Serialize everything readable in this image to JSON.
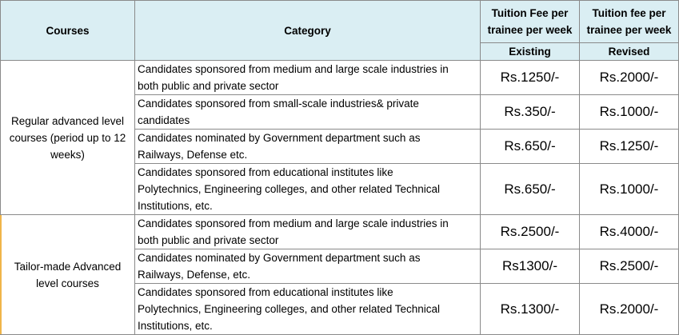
{
  "table": {
    "header": {
      "courses": "Courses",
      "category": "Category",
      "fee_existing_heading": [
        "Tuition Fee per",
        "trainee per week"
      ],
      "fee_revised_heading": [
        "Tuition fee per",
        "trainee per week"
      ],
      "existing": "Existing",
      "revised": "Revised"
    },
    "groups": [
      {
        "course_lines": [
          "Regular advanced level",
          "courses (period up to 12",
          "weeks)"
        ],
        "rows": [
          {
            "category_lines": [
              "Candidates sponsored from medium and large scale industries in",
              "both public and private sector"
            ],
            "existing": "Rs.1250/-",
            "revised": "Rs.2000/-"
          },
          {
            "category_lines": [
              "Candidates sponsored from small-scale industries& private",
              "candidates"
            ],
            "existing": "Rs.350/-",
            "revised": "Rs.1000/-"
          },
          {
            "category_lines": [
              "Candidates nominated by Government department such as",
              "Railways, Defense etc."
            ],
            "existing": "Rs.650/-",
            "revised": "Rs.1250/-"
          },
          {
            "category_lines": [
              "Candidates sponsored from educational institutes like",
              "Polytechnics, Engineering colleges, and other related Technical",
              "Institutions, etc."
            ],
            "existing": "Rs.650/-",
            "revised": "Rs.1000/-"
          }
        ]
      },
      {
        "course_lines": [
          "Tailor-made Advanced",
          "level courses"
        ],
        "rows": [
          {
            "category_lines": [
              "Candidates sponsored from medium and large scale industries in",
              "both public and private sector"
            ],
            "existing": "Rs.2500/-",
            "revised": "Rs.4000/-"
          },
          {
            "category_lines": [
              "Candidates nominated by Government department such as",
              "Railways, Defense, etc."
            ],
            "existing": "Rs1300/-",
            "revised": "Rs.2500/-"
          },
          {
            "category_lines": [
              "Candidates sponsored from educational institutes like",
              "Polytechnics, Engineering colleges, and other related Technical",
              "Institutions, etc."
            ],
            "existing": "Rs.1300/-",
            "revised": "Rs.2000/-"
          }
        ]
      }
    ]
  }
}
